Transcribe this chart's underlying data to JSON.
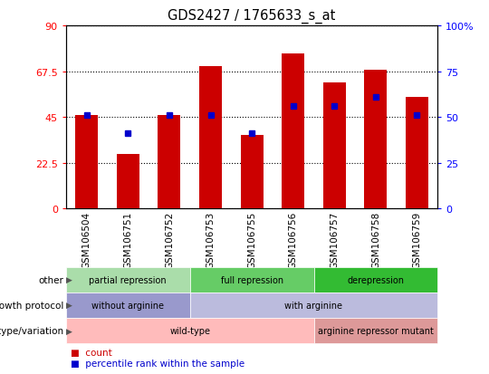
{
  "title": "GDS2427 / 1765633_s_at",
  "samples": [
    "GSM106504",
    "GSM106751",
    "GSM106752",
    "GSM106753",
    "GSM106755",
    "GSM106756",
    "GSM106757",
    "GSM106758",
    "GSM106759"
  ],
  "counts": [
    46,
    27,
    46,
    70,
    36,
    76,
    62,
    68,
    55
  ],
  "percentile_ranks": [
    51,
    41,
    51,
    51,
    41,
    56,
    56,
    61,
    51
  ],
  "ylim_left": [
    0,
    90
  ],
  "ylim_right": [
    0,
    100
  ],
  "yticks_left": [
    0,
    22.5,
    45,
    67.5,
    90
  ],
  "yticks_left_labels": [
    "0",
    "22.5",
    "45",
    "67.5",
    "90"
  ],
  "yticks_right": [
    0,
    25,
    50,
    75,
    100
  ],
  "yticks_right_labels": [
    "0",
    "25",
    "50",
    "75",
    "100%"
  ],
  "bar_color": "#cc0000",
  "dot_color": "#0000cc",
  "annotation_rows": [
    {
      "label": "other",
      "groups": [
        {
          "text": "partial repression",
          "start": 0,
          "end": 3,
          "color": "#aaddaa"
        },
        {
          "text": "full repression",
          "start": 3,
          "end": 6,
          "color": "#66cc66"
        },
        {
          "text": "derepression",
          "start": 6,
          "end": 9,
          "color": "#33bb33"
        }
      ]
    },
    {
      "label": "growth protocol",
      "groups": [
        {
          "text": "without arginine",
          "start": 0,
          "end": 3,
          "color": "#9999cc"
        },
        {
          "text": "with arginine",
          "start": 3,
          "end": 9,
          "color": "#bbbbdd"
        }
      ]
    },
    {
      "label": "genotype/variation",
      "groups": [
        {
          "text": "wild-type",
          "start": 0,
          "end": 6,
          "color": "#ffbbbb"
        },
        {
          "text": "arginine repressor mutant",
          "start": 6,
          "end": 9,
          "color": "#dd9999"
        }
      ]
    }
  ],
  "legend_count_label": "count",
  "legend_pct_label": "percentile rank within the sample"
}
